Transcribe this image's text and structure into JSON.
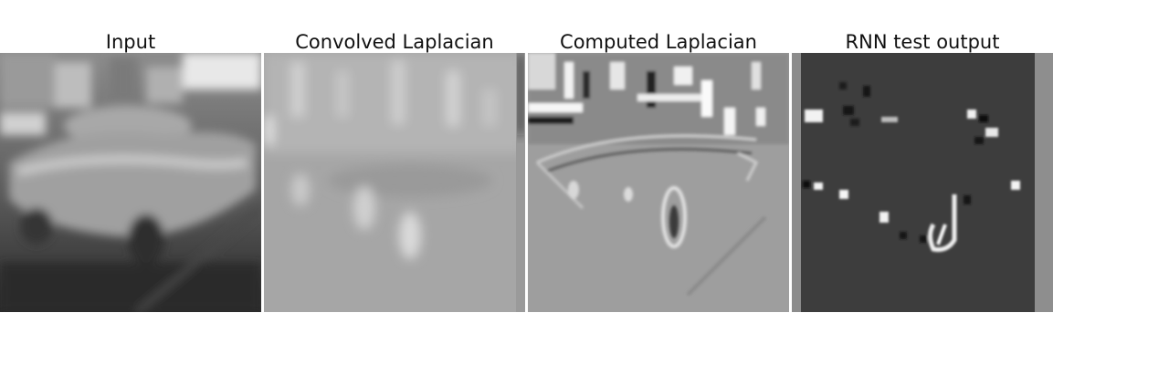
{
  "figure": {
    "panels": [
      {
        "title": "Input",
        "icon": "car-photo-image"
      },
      {
        "title": "Convolved Laplacian",
        "icon": "laplacian-filtered-image"
      },
      {
        "title": "Computed Laplacian",
        "icon": "edge-map-image"
      },
      {
        "title": "RNN test output",
        "icon": "sparse-activation-image"
      }
    ]
  },
  "colors": {
    "background": "#ffffff",
    "rnn_background": "#3d3d3d",
    "laplacian_gray": "#a6a6a6"
  }
}
